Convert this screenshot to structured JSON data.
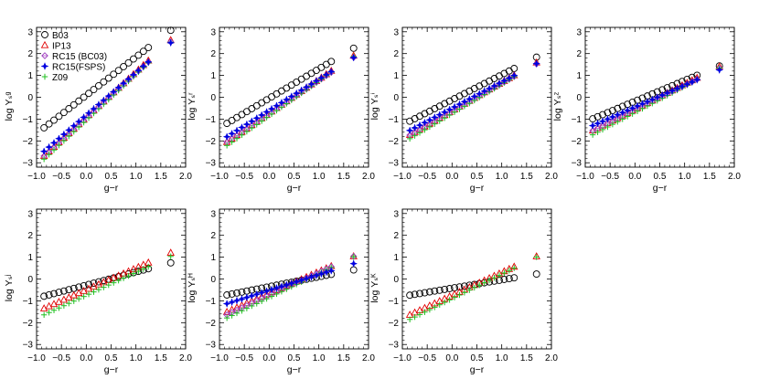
{
  "chart_data": {
    "type": "scatter",
    "legend": {
      "placement": "top-left",
      "entries": [
        {
          "label": "B03",
          "marker": "circle",
          "color": "#000000"
        },
        {
          "label": "IP13",
          "marker": "triangle",
          "color": "#e00000"
        },
        {
          "label": "RC15 (BC03)",
          "marker": "diamond",
          "color": "#a040c0"
        },
        {
          "label": "RC15(FSPS)",
          "marker": "star",
          "color": "#0000e0"
        },
        {
          "label": "Z09",
          "marker": "plus",
          "color": "#20c020"
        }
      ]
    },
    "xlabel": "g−r",
    "xlim": [
      -1.0,
      2.0
    ],
    "ylim": [
      -3.2,
      3.2
    ],
    "xticks": [
      "−1.0",
      "−0.5",
      "0.0",
      "0.5",
      "1.0",
      "1.5",
      "2.0"
    ],
    "yticks": [
      "−3",
      "−2",
      "−1",
      "0",
      "1",
      "2",
      "3"
    ],
    "x_points": [
      -0.85,
      -0.75,
      -0.65,
      -0.55,
      -0.45,
      -0.35,
      -0.25,
      -0.15,
      -0.05,
      0.05,
      0.15,
      0.25,
      0.35,
      0.45,
      0.55,
      0.65,
      0.75,
      0.85,
      0.95,
      1.05,
      1.15,
      1.25,
      1.7
    ],
    "panels": [
      {
        "ylabel": "log Υₛᵍ",
        "series": [
          {
            "name": "B03",
            "fit": [
              0.09,
              1.75
            ]
          },
          {
            "name": "IP13",
            "fit": [
              -0.92,
              2.08
            ]
          },
          {
            "name": "RC15 (BC03)",
            "fit": [
              -0.95,
              2.05
            ]
          },
          {
            "name": "RC15(FSPS)",
            "fit": [
              -0.82,
              1.95
            ]
          },
          {
            "name": "Z09",
            "fit": [
              -1.05,
              2.1
            ]
          }
        ]
      },
      {
        "ylabel": "log Υₛʳ",
        "series": [
          {
            "name": "B03",
            "fit": [
              -0.05,
              1.35
            ]
          },
          {
            "name": "IP13",
            "fit": [
              -0.73,
              1.55
            ]
          },
          {
            "name": "RC15 (BC03)",
            "fit": [
              -0.76,
              1.52
            ]
          },
          {
            "name": "RC15(FSPS)",
            "fit": [
              -0.6,
              1.42
            ]
          },
          {
            "name": "Z09",
            "fit": [
              -0.85,
              1.6
            ]
          }
        ]
      },
      {
        "ylabel": "log Υₛⁱ",
        "series": [
          {
            "name": "B03",
            "fit": [
              -0.12,
              1.15
            ]
          },
          {
            "name": "IP13",
            "fit": [
              -0.62,
              1.3
            ]
          },
          {
            "name": "RC15 (BC03)",
            "fit": [
              -0.65,
              1.28
            ]
          },
          {
            "name": "RC15(FSPS)",
            "fit": [
              -0.5,
              1.2
            ]
          },
          {
            "name": "Z09",
            "fit": [
              -0.75,
              1.35
            ]
          }
        ]
      },
      {
        "ylabel": "log Υₛᶻ",
        "series": [
          {
            "name": "B03",
            "fit": [
              -0.18,
              0.95
            ]
          },
          {
            "name": "IP13",
            "fit": [
              -0.55,
              1.15
            ]
          },
          {
            "name": "RC15 (BC03)",
            "fit": [
              -0.58,
              1.12
            ]
          },
          {
            "name": "RC15(FSPS)",
            "fit": [
              -0.45,
              1.0
            ]
          },
          {
            "name": "Z09",
            "fit": [
              -0.7,
              1.2
            ]
          }
        ]
      },
      {
        "ylabel": "log Υₛʲ",
        "series": [
          {
            "name": "B03",
            "fit": [
              -0.28,
              0.6
            ]
          },
          {
            "name": "IP13",
            "fit": [
              -0.5,
              1.0
            ]
          },
          {
            "name": "Z09",
            "fit": [
              -0.75,
              1.05
            ]
          }
        ]
      },
      {
        "ylabel": "log Υₛᴴ",
        "series": [
          {
            "name": "B03",
            "fit": [
              -0.35,
              0.45
            ]
          },
          {
            "name": "IP13",
            "fit": [
              -0.66,
              1.0
            ]
          },
          {
            "name": "RC15 (BC03)",
            "fit": [
              -0.75,
              1.05
            ]
          },
          {
            "name": "RC15(FSPS)",
            "fit": [
              -0.52,
              0.72
            ]
          },
          {
            "name": "Z09",
            "fit": [
              -0.85,
              1.1
            ]
          }
        ]
      },
      {
        "ylabel": "log Υₛᴷ",
        "series": [
          {
            "name": "B03",
            "fit": [
              -0.42,
              0.38
            ]
          },
          {
            "name": "IP13",
            "fit": [
              -0.75,
              1.05
            ]
          },
          {
            "name": "Z09",
            "fit": [
              -0.9,
              1.12
            ]
          }
        ]
      }
    ]
  }
}
